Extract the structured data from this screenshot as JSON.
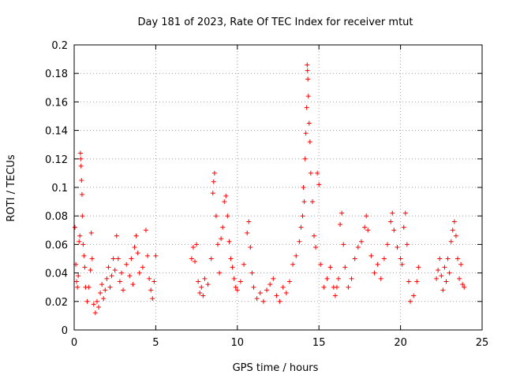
{
  "chart_data": {
    "type": "scatter",
    "title": "Day 181 of 2023, Rate Of TEC Index for receiver mtut",
    "xlabel": "GPS time / hours",
    "ylabel": "ROTI / TECUs",
    "xlim": [
      0,
      25
    ],
    "ylim": [
      0,
      0.2
    ],
    "xticks": [
      "0",
      "5",
      "10",
      "15",
      "20",
      "25"
    ],
    "yticks": [
      "0",
      "0.02",
      "0.04",
      "0.06",
      "0.08",
      "0.1",
      "0.12",
      "0.14",
      "0.16",
      "0.18",
      "0.2"
    ],
    "grid": true,
    "marker": "+",
    "color": "#ff0000",
    "series": [
      {
        "points": [
          [
            0.05,
            0.072
          ],
          [
            0.1,
            0.046
          ],
          [
            0.15,
            0.034
          ],
          [
            0.2,
            0.03
          ],
          [
            0.25,
            0.038
          ],
          [
            0.3,
            0.062
          ],
          [
            0.35,
            0.066
          ],
          [
            0.38,
            0.124
          ],
          [
            0.4,
            0.12
          ],
          [
            0.42,
            0.115
          ],
          [
            0.45,
            0.105
          ],
          [
            0.48,
            0.095
          ],
          [
            0.5,
            0.08
          ],
          [
            0.55,
            0.06
          ],
          [
            0.6,
            0.052
          ],
          [
            0.65,
            0.044
          ],
          [
            0.7,
            0.03
          ],
          [
            0.8,
            0.02
          ],
          [
            0.9,
            0.03
          ],
          [
            1.0,
            0.042
          ],
          [
            1.05,
            0.068
          ],
          [
            1.1,
            0.05
          ],
          [
            1.2,
            0.018
          ],
          [
            1.3,
            0.012
          ],
          [
            1.4,
            0.02
          ],
          [
            1.5,
            0.016
          ],
          [
            1.6,
            0.026
          ],
          [
            1.7,
            0.032
          ],
          [
            1.8,
            0.022
          ],
          [
            1.9,
            0.028
          ],
          [
            2.0,
            0.036
          ],
          [
            2.1,
            0.044
          ],
          [
            2.2,
            0.03
          ],
          [
            2.3,
            0.038
          ],
          [
            2.4,
            0.05
          ],
          [
            2.5,
            0.042
          ],
          [
            2.6,
            0.066
          ],
          [
            2.7,
            0.05
          ],
          [
            2.8,
            0.034
          ],
          [
            2.9,
            0.04
          ],
          [
            3.0,
            0.028
          ],
          [
            3.2,
            0.046
          ],
          [
            3.4,
            0.038
          ],
          [
            3.5,
            0.05
          ],
          [
            3.6,
            0.032
          ],
          [
            3.7,
            0.058
          ],
          [
            3.8,
            0.066
          ],
          [
            3.9,
            0.054
          ],
          [
            4.0,
            0.04
          ],
          [
            4.2,
            0.044
          ],
          [
            4.4,
            0.07
          ],
          [
            4.5,
            0.052
          ],
          [
            4.6,
            0.036
          ],
          [
            4.7,
            0.028
          ],
          [
            4.8,
            0.022
          ],
          [
            4.9,
            0.034
          ],
          [
            5.0,
            0.052
          ],
          [
            7.2,
            0.05
          ],
          [
            7.3,
            0.058
          ],
          [
            7.4,
            0.048
          ],
          [
            7.5,
            0.06
          ],
          [
            7.6,
            0.034
          ],
          [
            7.7,
            0.026
          ],
          [
            7.8,
            0.03
          ],
          [
            7.9,
            0.024
          ],
          [
            8.0,
            0.036
          ],
          [
            8.2,
            0.032
          ],
          [
            8.4,
            0.05
          ],
          [
            8.5,
            0.096
          ],
          [
            8.55,
            0.104
          ],
          [
            8.6,
            0.11
          ],
          [
            8.7,
            0.08
          ],
          [
            8.8,
            0.06
          ],
          [
            8.9,
            0.04
          ],
          [
            9.0,
            0.064
          ],
          [
            9.1,
            0.072
          ],
          [
            9.2,
            0.09
          ],
          [
            9.3,
            0.094
          ],
          [
            9.4,
            0.08
          ],
          [
            9.5,
            0.062
          ],
          [
            9.6,
            0.05
          ],
          [
            9.7,
            0.044
          ],
          [
            9.8,
            0.036
          ],
          [
            9.9,
            0.03
          ],
          [
            10.0,
            0.028
          ],
          [
            10.2,
            0.034
          ],
          [
            10.4,
            0.046
          ],
          [
            10.6,
            0.068
          ],
          [
            10.7,
            0.076
          ],
          [
            10.8,
            0.058
          ],
          [
            10.9,
            0.04
          ],
          [
            11.0,
            0.03
          ],
          [
            11.2,
            0.022
          ],
          [
            11.4,
            0.026
          ],
          [
            11.6,
            0.02
          ],
          [
            11.8,
            0.028
          ],
          [
            12.0,
            0.032
          ],
          [
            12.2,
            0.036
          ],
          [
            12.4,
            0.024
          ],
          [
            12.6,
            0.02
          ],
          [
            12.8,
            0.03
          ],
          [
            13.0,
            0.026
          ],
          [
            13.2,
            0.034
          ],
          [
            13.4,
            0.046
          ],
          [
            13.6,
            0.052
          ],
          [
            13.8,
            0.062
          ],
          [
            13.9,
            0.072
          ],
          [
            14.0,
            0.08
          ],
          [
            14.05,
            0.1
          ],
          [
            14.1,
            0.09
          ],
          [
            14.15,
            0.12
          ],
          [
            14.2,
            0.138
          ],
          [
            14.25,
            0.156
          ],
          [
            14.28,
            0.186
          ],
          [
            14.3,
            0.182
          ],
          [
            14.32,
            0.176
          ],
          [
            14.35,
            0.164
          ],
          [
            14.4,
            0.145
          ],
          [
            14.45,
            0.132
          ],
          [
            14.5,
            0.11
          ],
          [
            14.6,
            0.09
          ],
          [
            14.7,
            0.066
          ],
          [
            14.8,
            0.058
          ],
          [
            14.9,
            0.11
          ],
          [
            15.0,
            0.102
          ],
          [
            15.1,
            0.046
          ],
          [
            15.3,
            0.03
          ],
          [
            15.5,
            0.036
          ],
          [
            15.7,
            0.044
          ],
          [
            15.9,
            0.03
          ],
          [
            16.0,
            0.024
          ],
          [
            16.1,
            0.03
          ],
          [
            16.2,
            0.036
          ],
          [
            16.3,
            0.074
          ],
          [
            16.4,
            0.082
          ],
          [
            16.5,
            0.06
          ],
          [
            16.6,
            0.044
          ],
          [
            16.8,
            0.03
          ],
          [
            17.0,
            0.036
          ],
          [
            17.2,
            0.05
          ],
          [
            17.4,
            0.058
          ],
          [
            17.6,
            0.062
          ],
          [
            17.8,
            0.072
          ],
          [
            17.9,
            0.08
          ],
          [
            18.0,
            0.07
          ],
          [
            18.2,
            0.052
          ],
          [
            18.4,
            0.04
          ],
          [
            18.6,
            0.046
          ],
          [
            18.8,
            0.036
          ],
          [
            19.0,
            0.05
          ],
          [
            19.2,
            0.06
          ],
          [
            19.4,
            0.076
          ],
          [
            19.5,
            0.082
          ],
          [
            19.6,
            0.07
          ],
          [
            19.8,
            0.058
          ],
          [
            20.0,
            0.05
          ],
          [
            20.1,
            0.046
          ],
          [
            20.2,
            0.072
          ],
          [
            20.3,
            0.082
          ],
          [
            20.4,
            0.06
          ],
          [
            20.5,
            0.034
          ],
          [
            20.6,
            0.02
          ],
          [
            20.8,
            0.024
          ],
          [
            21.0,
            0.034
          ],
          [
            21.1,
            0.044
          ],
          [
            22.2,
            0.036
          ],
          [
            22.3,
            0.042
          ],
          [
            22.4,
            0.05
          ],
          [
            22.5,
            0.038
          ],
          [
            22.6,
            0.028
          ],
          [
            22.7,
            0.044
          ],
          [
            22.8,
            0.034
          ],
          [
            22.9,
            0.05
          ],
          [
            23.0,
            0.04
          ],
          [
            23.1,
            0.062
          ],
          [
            23.2,
            0.07
          ],
          [
            23.3,
            0.076
          ],
          [
            23.4,
            0.066
          ],
          [
            23.5,
            0.05
          ],
          [
            23.6,
            0.036
          ],
          [
            23.7,
            0.046
          ],
          [
            23.8,
            0.032
          ],
          [
            23.9,
            0.03
          ]
        ]
      }
    ]
  }
}
